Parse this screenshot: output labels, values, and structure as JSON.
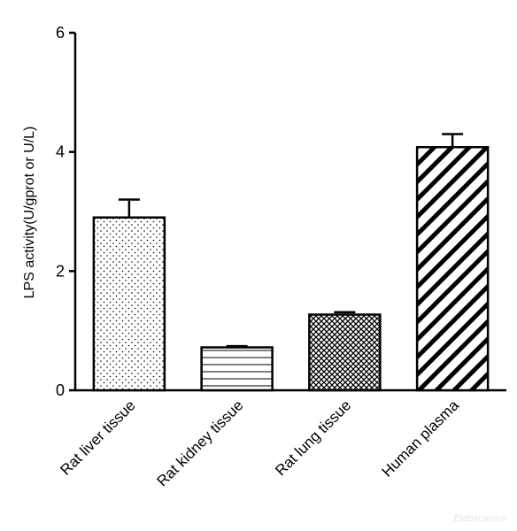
{
  "chart_data": {
    "type": "bar",
    "categories": [
      "Rat liver tissue",
      "Rat kidney tissue",
      "Rat lung tissue",
      "Human plasma"
    ],
    "values": [
      2.9,
      0.72,
      1.27,
      4.08
    ],
    "errors": [
      0.3,
      0.02,
      0.04,
      0.22
    ],
    "patterns": [
      "dots",
      "horizontal-lines",
      "crosshatch",
      "diagonal-stripes"
    ],
    "title": "",
    "xlabel": "",
    "ylabel": "LPS activity(U/gprot or U/L)",
    "ylim": [
      0,
      6
    ],
    "yticks": [
      0,
      2,
      4,
      6
    ],
    "grid": false
  },
  "watermark": "Elabscience"
}
